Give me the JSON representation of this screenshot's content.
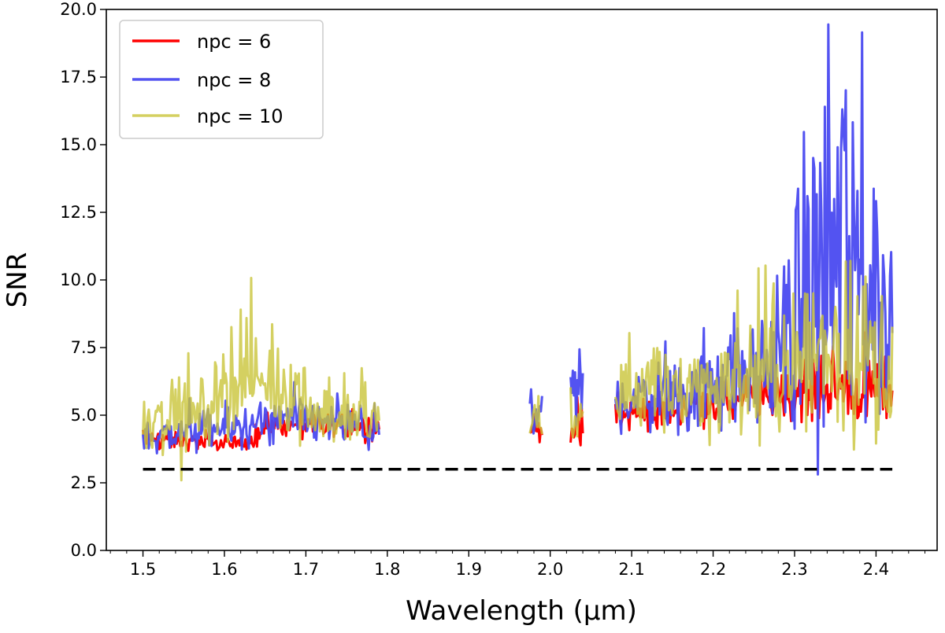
{
  "chart_data": {
    "type": "line",
    "title": "",
    "xlabel": "Wavelength (μm)",
    "ylabel": "SNR",
    "xlim": [
      1.455,
      2.475
    ],
    "ylim": [
      0.0,
      20.0
    ],
    "xticks": [
      1.5,
      1.6,
      1.7,
      1.8,
      1.9,
      2.0,
      2.1,
      2.2,
      2.3,
      2.4
    ],
    "xtick_labels": [
      "1.5",
      "1.6",
      "1.7",
      "1.8",
      "1.9",
      "2.0",
      "2.1",
      "2.2",
      "2.3",
      "2.4"
    ],
    "yticks": [
      0.0,
      2.5,
      5.0,
      7.5,
      10.0,
      12.5,
      15.0,
      17.5,
      20.0
    ],
    "ytick_labels": [
      "0.0",
      "2.5",
      "5.0",
      "7.5",
      "10.0",
      "12.5",
      "15.0",
      "17.5",
      "20.0"
    ],
    "grid": false,
    "legend_position": "top-left",
    "threshold": {
      "value": 3.0,
      "x_range": [
        1.5,
        2.42
      ],
      "style": "dashed",
      "color": "#000000"
    },
    "segments": [
      [
        1.5,
        1.79
      ],
      [
        1.975,
        1.99
      ],
      [
        2.025,
        2.04
      ],
      [
        2.08,
        2.42
      ]
    ],
    "series": [
      {
        "name": "npc = 6",
        "color": "#ff0000",
        "opacity": 1.0,
        "profile": [
          [
            1.5,
            4.1,
            0.15
          ],
          [
            1.57,
            4.0,
            0.15
          ],
          [
            1.62,
            3.9,
            0.15
          ],
          [
            1.66,
            4.6,
            0.25
          ],
          [
            1.79,
            4.6,
            0.25
          ],
          [
            1.975,
            4.5,
            0.25
          ],
          [
            1.99,
            4.5,
            0.25
          ],
          [
            2.025,
            4.5,
            0.25
          ],
          [
            2.04,
            4.5,
            0.25
          ],
          [
            2.08,
            4.9,
            0.3
          ],
          [
            2.2,
            5.5,
            0.4
          ],
          [
            2.3,
            5.8,
            0.5
          ],
          [
            2.42,
            6.0,
            0.6
          ]
        ]
      },
      {
        "name": "npc = 8",
        "color": "#4a4af0",
        "opacity": 0.95,
        "profile": [
          [
            1.5,
            4.2,
            0.3
          ],
          [
            1.6,
            4.5,
            0.4
          ],
          [
            1.7,
            4.8,
            0.4
          ],
          [
            1.79,
            4.4,
            0.4
          ],
          [
            1.975,
            4.5,
            0.7
          ],
          [
            1.99,
            4.3,
            0.7
          ],
          [
            2.025,
            5.5,
            1.0
          ],
          [
            2.04,
            6.0,
            1.0
          ],
          [
            2.08,
            5.6,
            0.6
          ],
          [
            2.2,
            6.0,
            0.7
          ],
          [
            2.28,
            7.0,
            1.2
          ],
          [
            2.33,
            10.5,
            3.5
          ],
          [
            2.36,
            11.5,
            4.0
          ],
          [
            2.42,
            8.0,
            2.0
          ]
        ]
      },
      {
        "name": "npc = 10",
        "color": "#c9c43a",
        "opacity": 0.8,
        "profile": [
          [
            1.5,
            5.0,
            0.7
          ],
          [
            1.56,
            5.0,
            0.6
          ],
          [
            1.62,
            6.3,
            0.9
          ],
          [
            1.68,
            6.0,
            0.8
          ],
          [
            1.73,
            5.0,
            0.6
          ],
          [
            1.79,
            4.9,
            0.6
          ],
          [
            1.975,
            5.0,
            0.6
          ],
          [
            1.99,
            4.6,
            0.6
          ],
          [
            2.025,
            5.0,
            0.5
          ],
          [
            2.04,
            4.8,
            0.5
          ],
          [
            2.08,
            5.8,
            0.8
          ],
          [
            2.2,
            6.0,
            0.9
          ],
          [
            2.3,
            6.8,
            1.2
          ],
          [
            2.36,
            7.5,
            1.6
          ],
          [
            2.42,
            7.0,
            1.5
          ]
        ]
      }
    ],
    "noise_samples_per_unit": 700
  }
}
